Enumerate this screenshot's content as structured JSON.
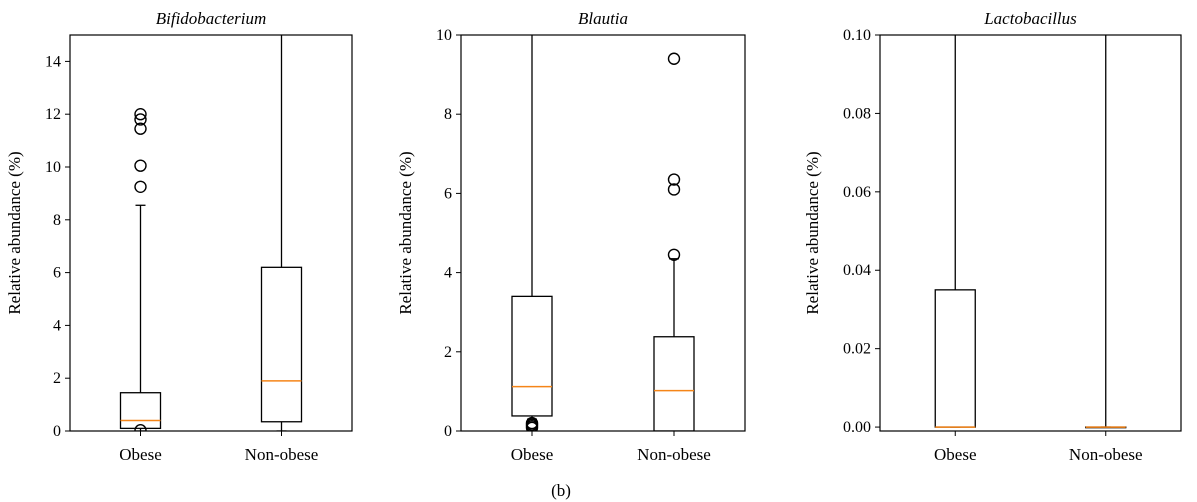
{
  "caption": "(b)",
  "chart_data": [
    {
      "type": "box",
      "title": "Bifidobacterium",
      "ylabel": "Relative abundance (%)",
      "xlabel": "",
      "categories": [
        "Obese",
        "Non-obese"
      ],
      "ylim": [
        0,
        15
      ],
      "yticks": [
        0,
        2,
        4,
        6,
        8,
        10,
        12,
        14
      ],
      "tick_labels": [
        "0",
        "2",
        "4",
        "6",
        "8",
        "10",
        "12",
        "14"
      ],
      "grid": false,
      "boxes": [
        {
          "category": "Obese",
          "whisker_low": 0.0,
          "q1": 0.1,
          "median": 0.4,
          "q3": 1.45,
          "whisker_high": 8.55,
          "outliers": [
            9.25,
            10.05,
            11.45,
            11.8,
            12.0,
            0.03
          ]
        },
        {
          "category": "Non-obese",
          "whisker_low": 0.0,
          "q1": 0.35,
          "median": 1.9,
          "q3": 6.2,
          "whisker_high": 15.5,
          "outliers": []
        }
      ]
    },
    {
      "type": "box",
      "title": "Blautia",
      "ylabel": "Relative abundance (%)",
      "xlabel": "",
      "categories": [
        "Obese",
        "Non-obese"
      ],
      "ylim": [
        0,
        10
      ],
      "yticks": [
        0,
        2,
        4,
        6,
        8,
        10
      ],
      "tick_labels": [
        "0",
        "2",
        "4",
        "6",
        "8",
        "10"
      ],
      "grid": false,
      "boxes": [
        {
          "category": "Obese",
          "whisker_low": 0.3,
          "q1": 0.38,
          "median": 1.12,
          "q3": 3.4,
          "whisker_high": 10.5,
          "outliers": [
            0.08,
            0.12,
            0.16,
            0.2
          ]
        },
        {
          "category": "Non-obese",
          "whisker_low": 0.0,
          "q1": 0.0,
          "median": 1.02,
          "q3": 2.38,
          "whisker_high": 4.35,
          "outliers": [
            4.45,
            6.1,
            6.35,
            9.4
          ]
        }
      ]
    },
    {
      "type": "box",
      "title": "Lactobacillus",
      "ylabel": "Relative abundance (%)",
      "xlabel": "",
      "categories": [
        "Obese",
        "Non-obese"
      ],
      "ylim": [
        -0.001,
        0.1
      ],
      "yticks": [
        0,
        0.02,
        0.04,
        0.06,
        0.08,
        0.1
      ],
      "tick_labels": [
        "0.00",
        "0.02",
        "0.04",
        "0.06",
        "0.08",
        "0.10"
      ],
      "grid": false,
      "boxes": [
        {
          "category": "Obese",
          "whisker_low": 0.0,
          "q1": 0.0,
          "median": 0.0,
          "q3": 0.035,
          "whisker_high": 0.11,
          "outliers": []
        },
        {
          "category": "Non-obese",
          "whisker_low": 0.0,
          "q1": 0.0,
          "median": 0.0,
          "q3": 0.0,
          "whisker_high": 0.11,
          "outliers": []
        }
      ]
    }
  ],
  "colors": {
    "box": "#000000",
    "median": "#f58518",
    "outlier": "#000000"
  }
}
